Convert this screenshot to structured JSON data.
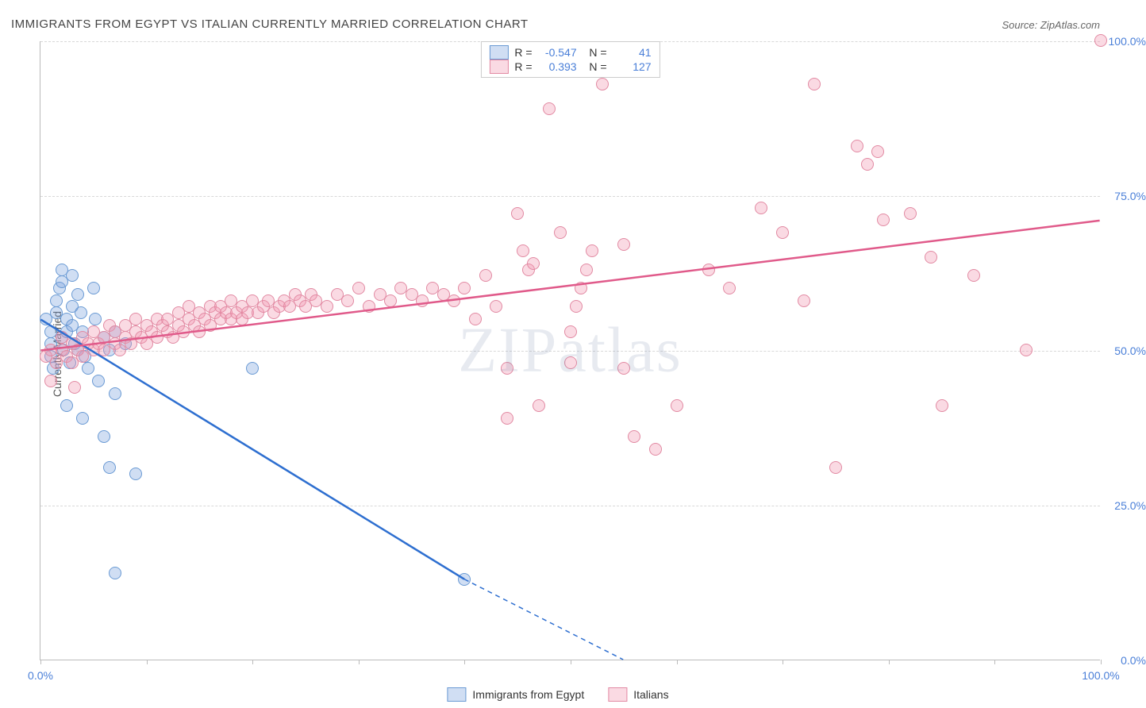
{
  "title": "IMMIGRANTS FROM EGYPT VS ITALIAN CURRENTLY MARRIED CORRELATION CHART",
  "source": "Source: ZipAtlas.com",
  "ylabel": "Currently Married",
  "watermark": "ZIPatlas",
  "chart": {
    "type": "scatter",
    "xlim": [
      0,
      100
    ],
    "ylim": [
      0,
      100
    ],
    "yticks": [
      0,
      25,
      50,
      75,
      100
    ],
    "ytick_labels": [
      "0.0%",
      "25.0%",
      "50.0%",
      "75.0%",
      "100.0%"
    ],
    "xticks": [
      0,
      10,
      20,
      30,
      40,
      50,
      60,
      70,
      80,
      90,
      100
    ],
    "xtick_labels": {
      "0": "0.0%",
      "100": "100.0%"
    },
    "background_color": "#ffffff",
    "grid_color": "#d8d8d8",
    "marker_radius": 8,
    "marker_border_width": 1.5,
    "series": [
      {
        "name": "Immigrants from Egypt",
        "fill_color": "rgba(120,160,220,0.35)",
        "stroke_color": "#6a9ad4",
        "line_color": "#2e6fd0",
        "R": "-0.547",
        "N": "41",
        "trend": {
          "x1": 0,
          "y1": 55,
          "x2": 40,
          "y2": 13,
          "dash_to_x": 55,
          "dash_to_y": 0
        },
        "points": [
          [
            0.5,
            55
          ],
          [
            1,
            53
          ],
          [
            1,
            51
          ],
          [
            1,
            49
          ],
          [
            1.2,
            47
          ],
          [
            1.5,
            58
          ],
          [
            1.5,
            56
          ],
          [
            1.8,
            60
          ],
          [
            2,
            63
          ],
          [
            2,
            61
          ],
          [
            2,
            52
          ],
          [
            2.2,
            50
          ],
          [
            2.5,
            55
          ],
          [
            2.5,
            53
          ],
          [
            2.8,
            48
          ],
          [
            3,
            62
          ],
          [
            3,
            57
          ],
          [
            3,
            54
          ],
          [
            3.2,
            51
          ],
          [
            3.5,
            50
          ],
          [
            3.5,
            59
          ],
          [
            3.8,
            56
          ],
          [
            4,
            53
          ],
          [
            4.2,
            49
          ],
          [
            4.5,
            47
          ],
          [
            5,
            60
          ],
          [
            5.2,
            55
          ],
          [
            5.5,
            45
          ],
          [
            6,
            52
          ],
          [
            6.5,
            50
          ],
          [
            7,
            53
          ],
          [
            7,
            43
          ],
          [
            8,
            51
          ],
          [
            2.5,
            41
          ],
          [
            4,
            39
          ],
          [
            6,
            36
          ],
          [
            6.5,
            31
          ],
          [
            9,
            30
          ],
          [
            7,
            14
          ],
          [
            20,
            47
          ],
          [
            40,
            13
          ]
        ]
      },
      {
        "name": "Italians",
        "fill_color": "rgba(240,150,175,0.35)",
        "stroke_color": "#e28aa3",
        "line_color": "#e05a8a",
        "R": "0.393",
        "N": "127",
        "trend": {
          "x1": 0,
          "y1": 50,
          "x2": 100,
          "y2": 71
        },
        "points": [
          [
            0.5,
            49
          ],
          [
            1,
            45
          ],
          [
            1,
            50
          ],
          [
            1.5,
            48
          ],
          [
            2,
            50
          ],
          [
            2,
            52
          ],
          [
            2.5,
            49
          ],
          [
            3,
            51
          ],
          [
            3,
            48
          ],
          [
            3.2,
            44
          ],
          [
            3.5,
            50
          ],
          [
            4,
            52
          ],
          [
            4,
            49
          ],
          [
            4.5,
            51
          ],
          [
            5,
            50
          ],
          [
            5,
            53
          ],
          [
            5.5,
            51
          ],
          [
            6,
            52
          ],
          [
            6,
            50
          ],
          [
            6.5,
            54
          ],
          [
            7,
            51
          ],
          [
            7,
            53
          ],
          [
            7.5,
            50
          ],
          [
            8,
            52
          ],
          [
            8,
            54
          ],
          [
            8.5,
            51
          ],
          [
            9,
            53
          ],
          [
            9,
            55
          ],
          [
            9.5,
            52
          ],
          [
            10,
            54
          ],
          [
            10,
            51
          ],
          [
            10.5,
            53
          ],
          [
            11,
            55
          ],
          [
            11,
            52
          ],
          [
            11.5,
            54
          ],
          [
            12,
            53
          ],
          [
            12,
            55
          ],
          [
            12.5,
            52
          ],
          [
            13,
            54
          ],
          [
            13,
            56
          ],
          [
            13.5,
            53
          ],
          [
            14,
            55
          ],
          [
            14,
            57
          ],
          [
            14.5,
            54
          ],
          [
            15,
            56
          ],
          [
            15,
            53
          ],
          [
            15.5,
            55
          ],
          [
            16,
            57
          ],
          [
            16,
            54
          ],
          [
            16.5,
            56
          ],
          [
            17,
            55
          ],
          [
            17,
            57
          ],
          [
            17.5,
            56
          ],
          [
            18,
            55
          ],
          [
            18,
            58
          ],
          [
            18.5,
            56
          ],
          [
            19,
            57
          ],
          [
            19,
            55
          ],
          [
            19.5,
            56
          ],
          [
            20,
            58
          ],
          [
            20.5,
            56
          ],
          [
            21,
            57
          ],
          [
            21.5,
            58
          ],
          [
            22,
            56
          ],
          [
            22.5,
            57
          ],
          [
            23,
            58
          ],
          [
            23.5,
            57
          ],
          [
            24,
            59
          ],
          [
            24.5,
            58
          ],
          [
            25,
            57
          ],
          [
            25.5,
            59
          ],
          [
            26,
            58
          ],
          [
            27,
            57
          ],
          [
            28,
            59
          ],
          [
            29,
            58
          ],
          [
            30,
            60
          ],
          [
            31,
            57
          ],
          [
            32,
            59
          ],
          [
            33,
            58
          ],
          [
            34,
            60
          ],
          [
            35,
            59
          ],
          [
            36,
            58
          ],
          [
            37,
            60
          ],
          [
            38,
            59
          ],
          [
            39,
            58
          ],
          [
            40,
            60
          ],
          [
            41,
            55
          ],
          [
            42,
            62
          ],
          [
            43,
            57
          ],
          [
            44,
            47
          ],
          [
            45,
            72
          ],
          [
            45.5,
            66
          ],
          [
            46,
            63
          ],
          [
            46.5,
            64
          ],
          [
            44,
            39
          ],
          [
            47,
            41
          ],
          [
            48,
            89
          ],
          [
            49,
            69
          ],
          [
            50,
            48
          ],
          [
            50,
            53
          ],
          [
            50.5,
            57
          ],
          [
            51,
            60
          ],
          [
            51.5,
            63
          ],
          [
            52,
            66
          ],
          [
            53,
            93
          ],
          [
            55,
            67
          ],
          [
            55,
            47
          ],
          [
            56,
            36
          ],
          [
            58,
            34
          ],
          [
            60,
            41
          ],
          [
            63,
            63
          ],
          [
            65,
            60
          ],
          [
            68,
            73
          ],
          [
            70,
            69
          ],
          [
            72,
            58
          ],
          [
            73,
            93
          ],
          [
            75,
            31
          ],
          [
            77,
            83
          ],
          [
            78,
            80
          ],
          [
            79,
            82
          ],
          [
            79.5,
            71
          ],
          [
            82,
            72
          ],
          [
            84,
            65
          ],
          [
            85,
            41
          ],
          [
            88,
            62
          ],
          [
            93,
            50
          ],
          [
            100,
            100
          ]
        ]
      }
    ]
  },
  "legend_bottom": [
    {
      "swatch_fill": "rgba(120,160,220,0.35)",
      "swatch_stroke": "#6a9ad4",
      "label": "Immigrants from Egypt"
    },
    {
      "swatch_fill": "rgba(240,150,175,0.35)",
      "swatch_stroke": "#e28aa3",
      "label": "Italians"
    }
  ]
}
